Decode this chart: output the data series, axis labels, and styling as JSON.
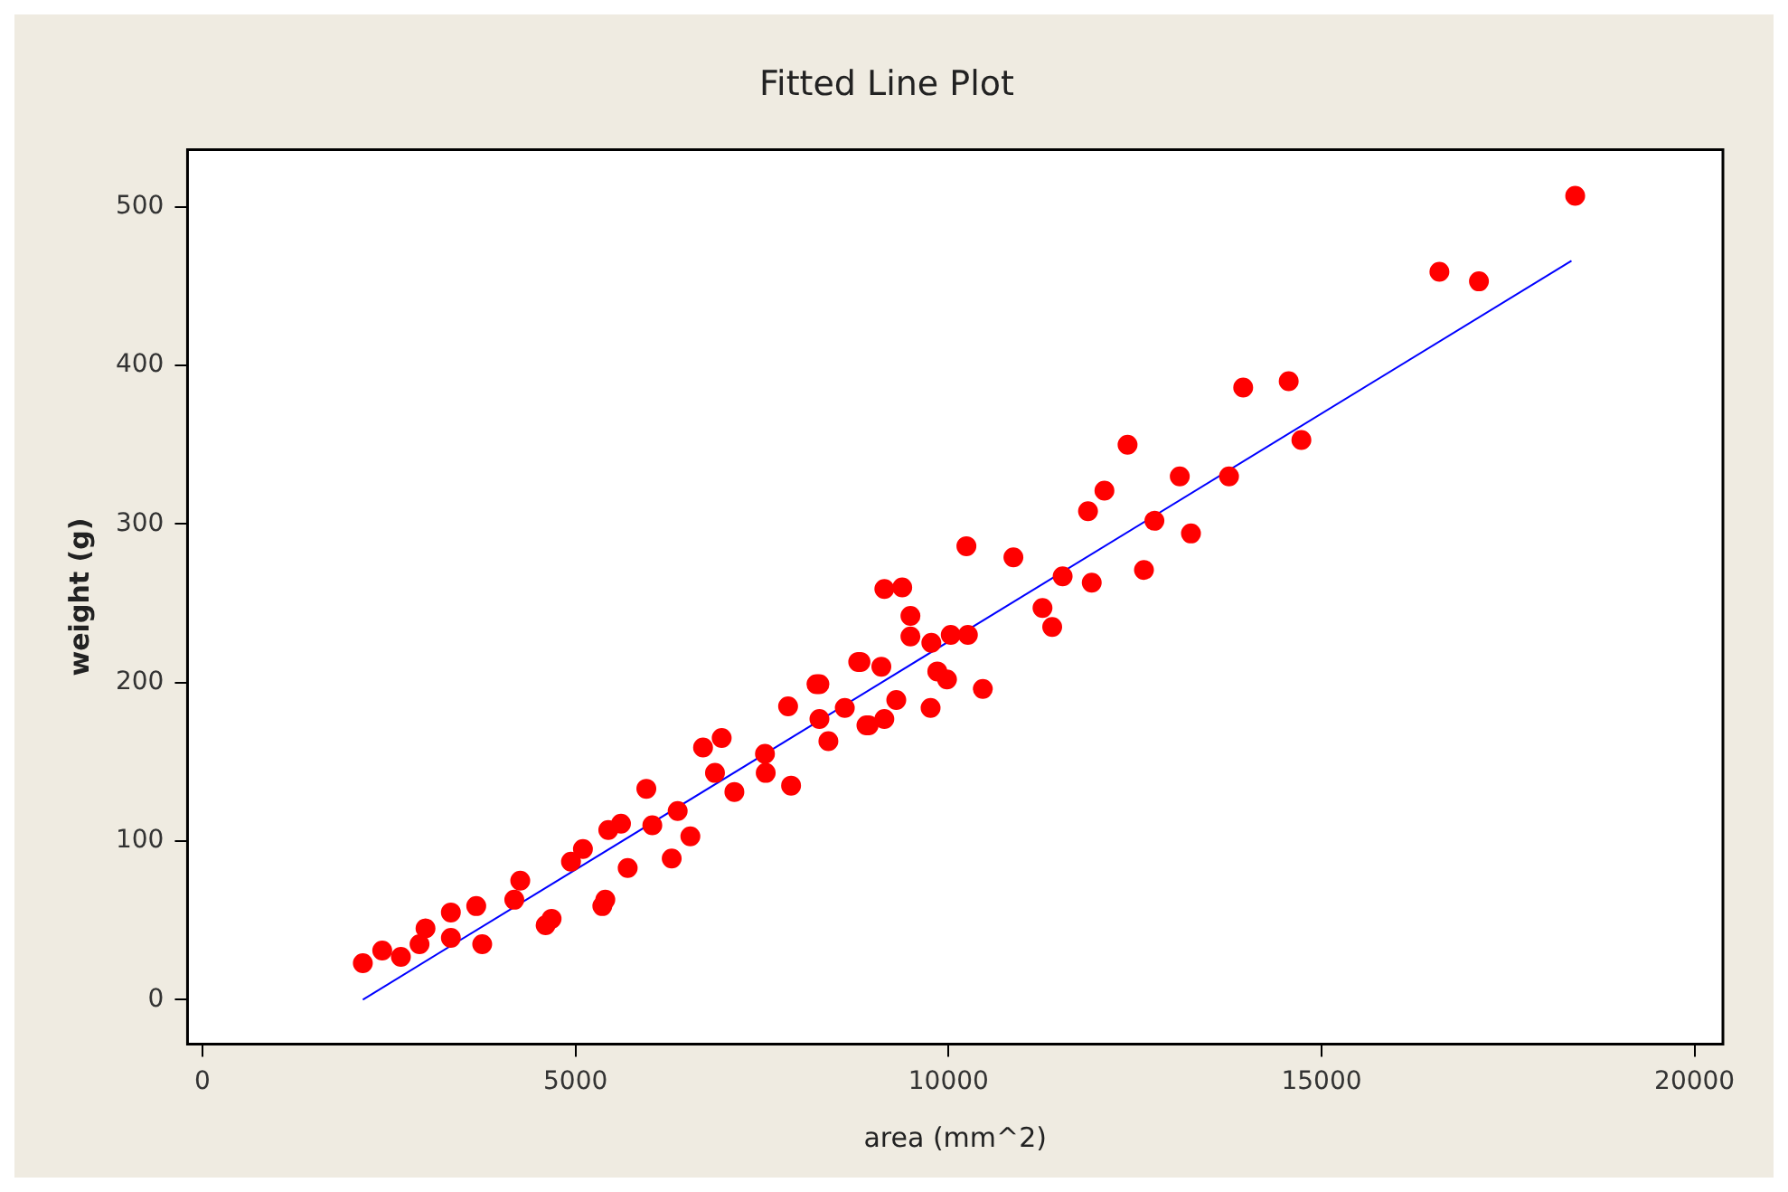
{
  "chart_data": {
    "type": "scatter",
    "title": "Fitted Line Plot",
    "xlabel": "area (mm^2)",
    "ylabel": "weight (g)",
    "xlim": [
      -200,
      20380
    ],
    "ylim": [
      -28,
      536
    ],
    "xticks": [
      0,
      5000,
      10000,
      15000,
      20000
    ],
    "yticks": [
      0,
      100,
      200,
      300,
      400,
      500
    ],
    "grid": false,
    "legend": false,
    "marker": "circle",
    "series": [
      {
        "color": "#ff0000",
        "x": [
          2150,
          2410,
          2660,
          2910,
          2990,
          3330,
          3330,
          3670,
          3750,
          4180,
          4260,
          4600,
          4680,
          4940,
          5100,
          5360,
          5400,
          5440,
          5610,
          5700,
          5950,
          6030,
          6290,
          6370,
          6540,
          6710,
          6870,
          6960,
          7130,
          7540,
          7550,
          7850,
          7890,
          8230,
          8270,
          8270,
          8390,
          8610,
          8790,
          8820,
          8900,
          8930,
          9100,
          9140,
          9140,
          9300,
          9380,
          9490,
          9490,
          9760,
          9770,
          9850,
          9980,
          10030,
          10240,
          10260,
          10460,
          10870,
          11260,
          11390,
          11530,
          11870,
          11920,
          12090,
          12400,
          12620,
          12760,
          13100,
          13250,
          13760,
          13950,
          14560,
          14730,
          16580,
          17110,
          18400
        ],
        "values": [
          23,
          31,
          27,
          35,
          45,
          39,
          55,
          59,
          35,
          63,
          75,
          47,
          51,
          87,
          95,
          59,
          63,
          107,
          111,
          83,
          133,
          110,
          89,
          119,
          103,
          159,
          143,
          165,
          131,
          155,
          143,
          185,
          135,
          199,
          199,
          177,
          163,
          184,
          213,
          213,
          173,
          173,
          210,
          259,
          177,
          189,
          260,
          242,
          229,
          184,
          225,
          207,
          202,
          230,
          286,
          230,
          196,
          279,
          247,
          235,
          267,
          308,
          263,
          321,
          350,
          271,
          302,
          330,
          294,
          330,
          386,
          390,
          353,
          459,
          453,
          507
        ]
      },
      {
        "type": "line",
        "color": "#0000ff",
        "x": [
          2150,
          18350
        ],
        "values": [
          0,
          466
        ],
        "marker": "none"
      }
    ]
  }
}
